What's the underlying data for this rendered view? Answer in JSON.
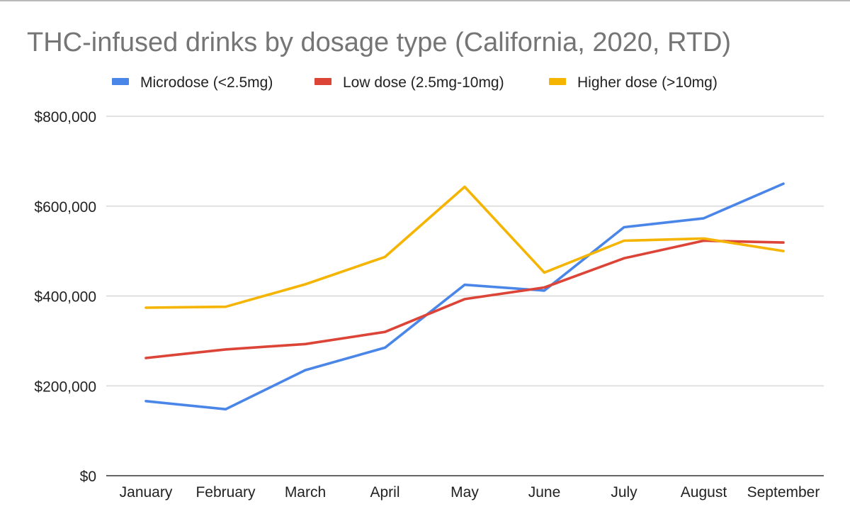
{
  "chart_data": {
    "type": "line",
    "title": "THC-infused drinks by dosage type (California, 2020, RTD)",
    "xlabel": "",
    "ylabel": "",
    "categories": [
      "January",
      "February",
      "March",
      "April",
      "May",
      "June",
      "July",
      "August",
      "September"
    ],
    "ylim": [
      0,
      800000
    ],
    "yticks": [
      0,
      200000,
      400000,
      600000,
      800000
    ],
    "ytick_labels": [
      "$0",
      "$200,000",
      "$400,000",
      "$600,000",
      "$800,000"
    ],
    "grid": true,
    "legend_position": "top",
    "series": [
      {
        "name": "Microdose (<2.5mg)",
        "color": "#4a86e8",
        "values": [
          166000,
          148000,
          235000,
          285000,
          425000,
          412000,
          553000,
          573000,
          650000
        ]
      },
      {
        "name": "Low dose (2.5mg-10mg)",
        "color": "#db4437",
        "values": [
          262000,
          281000,
          293000,
          320000,
          393000,
          419000,
          484000,
          523000,
          519000
        ]
      },
      {
        "name": "Higher dose (>10mg)",
        "color": "#f4b400",
        "values": [
          374000,
          376000,
          426000,
          487000,
          643000,
          452000,
          523000,
          528000,
          500000
        ]
      }
    ]
  }
}
